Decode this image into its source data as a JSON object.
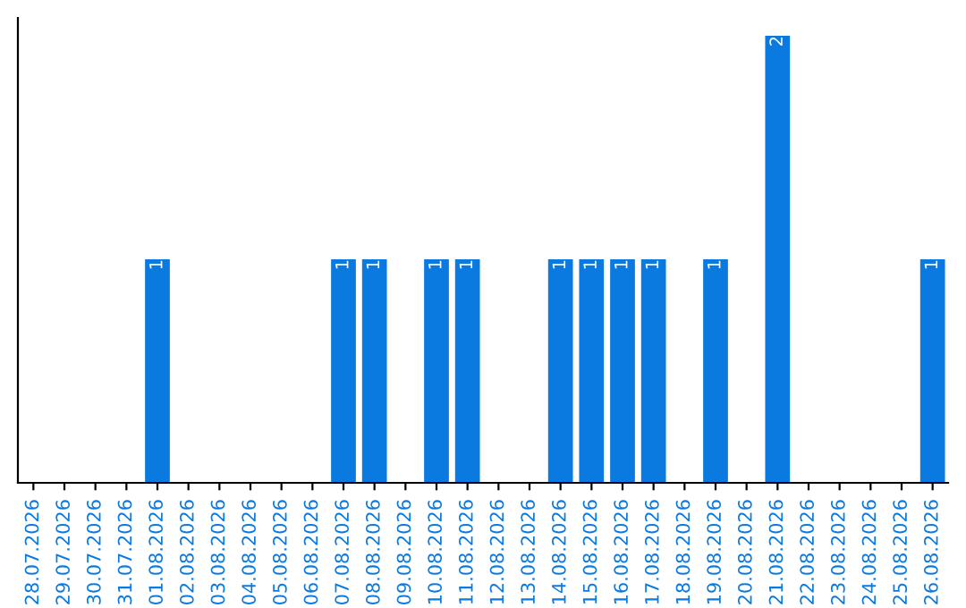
{
  "chart_data": {
    "type": "bar",
    "categories": [
      "28.07.2026",
      "29.07.2026",
      "30.07.2026",
      "31.07.2026",
      "01.08.2026",
      "02.08.2026",
      "03.08.2026",
      "04.08.2026",
      "05.08.2026",
      "06.08.2026",
      "07.08.2026",
      "08.08.2026",
      "09.08.2026",
      "10.08.2026",
      "11.08.2026",
      "12.08.2026",
      "13.08.2026",
      "14.08.2026",
      "15.08.2026",
      "16.08.2026",
      "17.08.2026",
      "18.08.2026",
      "19.08.2026",
      "20.08.2026",
      "21.08.2026",
      "22.08.2026",
      "23.08.2026",
      "24.08.2026",
      "25.08.2026",
      "26.08.2026"
    ],
    "values": [
      0,
      0,
      0,
      0,
      1,
      0,
      0,
      0,
      0,
      0,
      1,
      1,
      0,
      1,
      1,
      0,
      0,
      1,
      1,
      1,
      1,
      0,
      1,
      0,
      2,
      0,
      0,
      0,
      0,
      1
    ],
    "value_labels": [
      null,
      null,
      null,
      null,
      "1",
      null,
      null,
      null,
      null,
      null,
      "1",
      "1",
      null,
      "1",
      "1",
      null,
      null,
      "1",
      "1",
      "1",
      "1",
      null,
      "1",
      null,
      "2",
      null,
      null,
      null,
      null,
      "1"
    ],
    "color": "#0a7ae0",
    "tick_labels": "x",
    "grid": false,
    "legend": false
  }
}
